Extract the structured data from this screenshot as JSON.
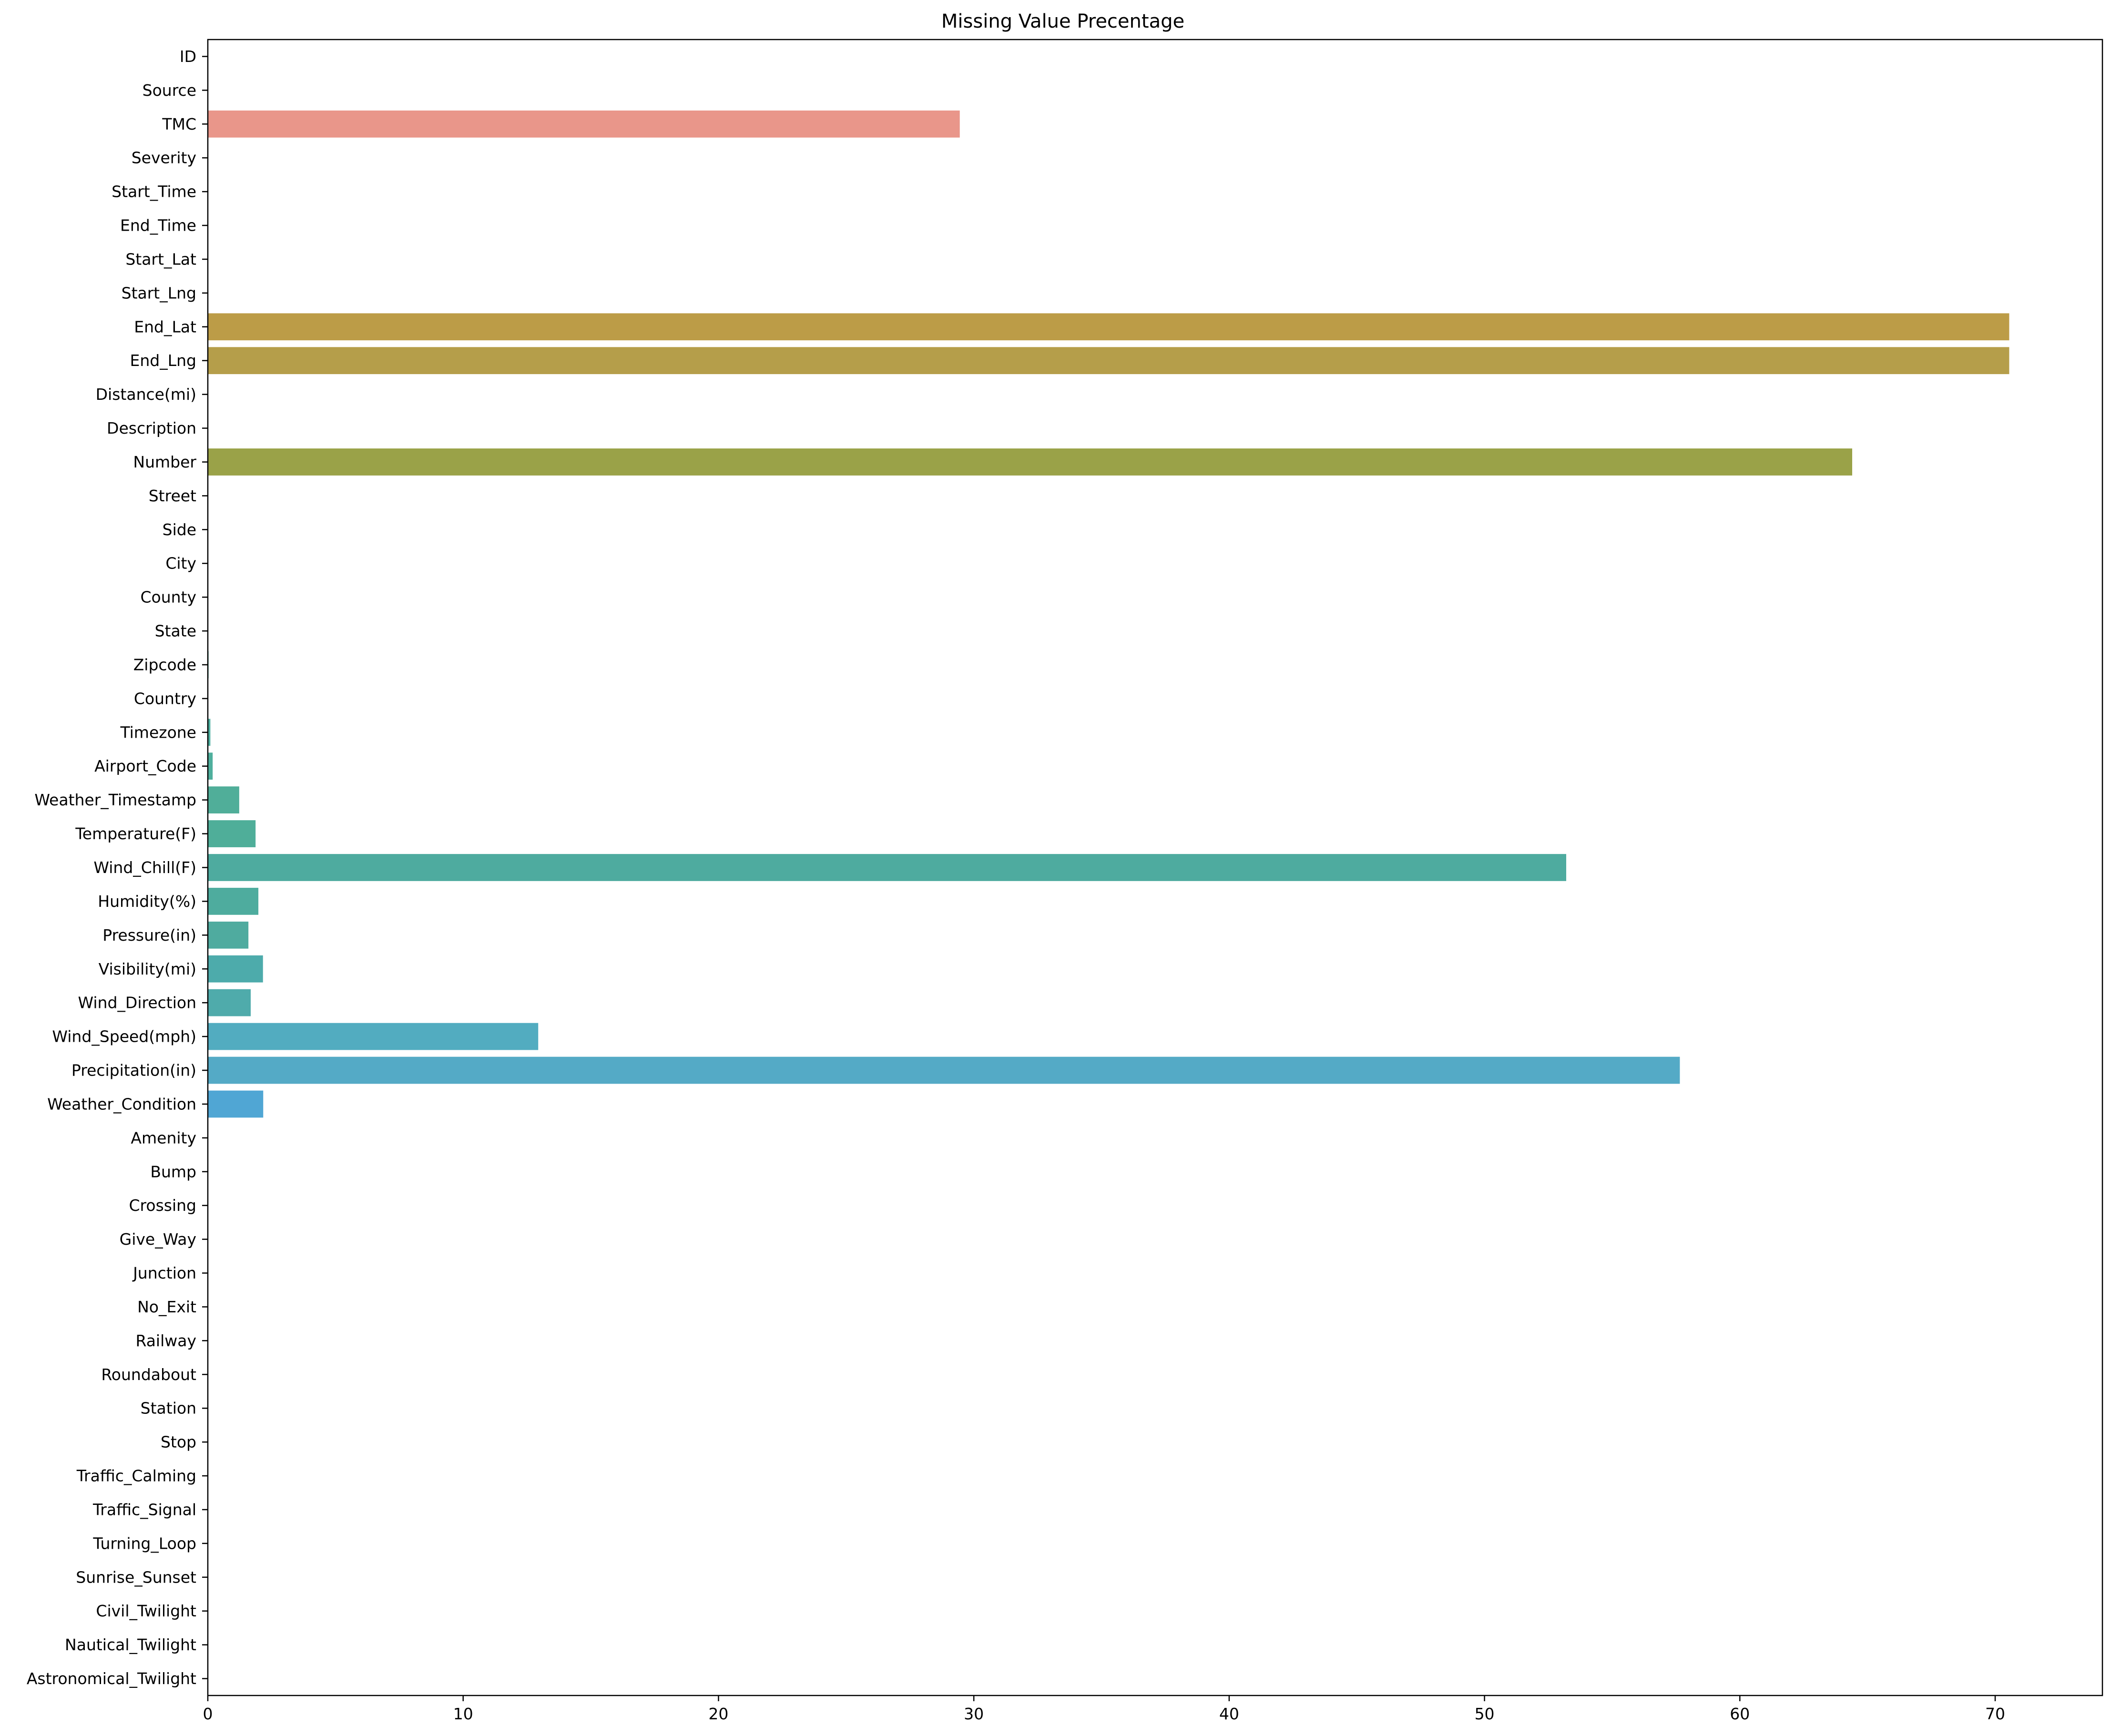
{
  "chart_data": {
    "type": "bar",
    "orientation": "horizontal",
    "title": "Missing Value Precentage",
    "xlabel": "",
    "ylabel": "",
    "xlim": [
      0,
      74.2
    ],
    "xticks": [
      0,
      10,
      20,
      30,
      40,
      50,
      60,
      70
    ],
    "grid": false,
    "categories": [
      "ID",
      "Source",
      "TMC",
      "Severity",
      "Start_Time",
      "End_Time",
      "Start_Lat",
      "Start_Lng",
      "End_Lat",
      "End_Lng",
      "Distance(mi)",
      "Description",
      "Number",
      "Street",
      "Side",
      "City",
      "County",
      "State",
      "Zipcode",
      "Country",
      "Timezone",
      "Airport_Code",
      "Weather_Timestamp",
      "Temperature(F)",
      "Wind_Chill(F)",
      "Humidity(%)",
      "Pressure(in)",
      "Visibility(mi)",
      "Wind_Direction",
      "Wind_Speed(mph)",
      "Precipitation(in)",
      "Weather_Condition",
      "Amenity",
      "Bump",
      "Crossing",
      "Give_Way",
      "Junction",
      "No_Exit",
      "Railway",
      "Roundabout",
      "Station",
      "Stop",
      "Traffic_Calming",
      "Traffic_Signal",
      "Turning_Loop",
      "Sunrise_Sunset",
      "Civil_Twilight",
      "Nautical_Twilight",
      "Astronomical_Twilight"
    ],
    "values": [
      0,
      0,
      29.45,
      0,
      0,
      0,
      0,
      0,
      70.55,
      70.55,
      0,
      0,
      64.4,
      0,
      0,
      0.003,
      0,
      0,
      0.03,
      0,
      0.1,
      0.19,
      1.23,
      1.87,
      53.2,
      1.98,
      1.59,
      2.16,
      1.68,
      12.94,
      57.65,
      2.17,
      0,
      0,
      0,
      0,
      0,
      0,
      0,
      0,
      0,
      0,
      0,
      0,
      0,
      0.003,
      0.003,
      0.003,
      0.003
    ],
    "colors": [
      "#f77189",
      "#f57a67",
      "#e9968a",
      "#e48f50",
      "#d6963d",
      "#c89e3d",
      "#bba23c",
      "#b4a346",
      "#bc9c47",
      "#b59e4a",
      "#a9a13d",
      "#9da23e",
      "#9aa248",
      "#8aa83e",
      "#6fae46",
      "#50b13d",
      "#49b167",
      "#4cb08a",
      "#4bb09a",
      "#4db0a6",
      "#4fb0a0",
      "#4faf9d",
      "#50ae99",
      "#4fae99",
      "#4eab9f",
      "#4eac9e",
      "#4fab9f",
      "#4dabab",
      "#4fabab",
      "#52acc0",
      "#54aac6",
      "#50a6d4",
      "#66a1dd",
      "#8d95ea",
      "#a48cf4",
      "#bb83f4",
      "#d27ae6",
      "#e874d7",
      "#f36ec6",
      "#f571b1",
      "#f5729c",
      "#f77189",
      "#f77189",
      "#f77189",
      "#f77189",
      "#f77189",
      "#f77189",
      "#f77189",
      "#f77189"
    ]
  }
}
